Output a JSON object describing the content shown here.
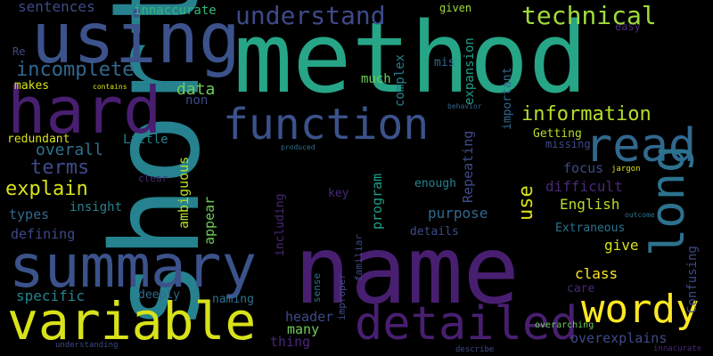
{
  "colors": {
    "background": "#000000",
    "palette": [
      "#440154",
      "#482878",
      "#3e4a89",
      "#31688e",
      "#26828e",
      "#1f9e89",
      "#35b779",
      "#6ece58",
      "#b5de2b",
      "#fde725"
    ]
  },
  "words": {
    "short": "short",
    "method": "method",
    "name": "name",
    "summary": "summary",
    "using": "using",
    "hard": "hard",
    "variable": "variable",
    "function": "function",
    "read": "read",
    "long": "long",
    "detailed": "detailed",
    "wordy": "wordy",
    "understand": "understand",
    "technical": "technical",
    "incomplete": "incomplete",
    "information": "information",
    "explain": "explain",
    "terms": "terms",
    "overall": "overall",
    "data": "data",
    "sentences": "sentences",
    "innaccurate": "innaccurate",
    "given": "given",
    "easy": "easy",
    "re": "Re",
    "makes": "makes",
    "contains": "contains",
    "non": "non",
    "redundant": "redundant",
    "little": "Little",
    "much": "much",
    "complex": "complex",
    "expansion": "expansion",
    "mis": "mis",
    "important": "important",
    "behavior": "behavior",
    "getting": "Getting",
    "missing": "missing",
    "produced": "produced",
    "focus": "focus",
    "jargon": "jargon",
    "clear": "clear",
    "ambiguous": "ambiguous",
    "appear": "appear",
    "types": "types",
    "insight": "insight",
    "defining": "defining",
    "including": "including",
    "program": "program",
    "repeating": "Repeating",
    "enough": "enough",
    "use": "use",
    "difficult": "difficult",
    "english": "English",
    "purpose": "purpose",
    "key": "key",
    "outcome": "outcome",
    "confusing": "Confusing",
    "details": "details",
    "extraneous": "Extraneous",
    "give": "give",
    "familiar": "familiar",
    "class": "class",
    "specific": "specific",
    "deeply": "deeply",
    "naming": "naming",
    "sense": "sense",
    "improper": "improper",
    "care": "care",
    "header": "header",
    "many": "many",
    "thing": "thing",
    "overexplains": "overexplains",
    "overarching": "overarching",
    "understanding": "understanding",
    "describe": "describe",
    "innacurate": "innacurate"
  }
}
